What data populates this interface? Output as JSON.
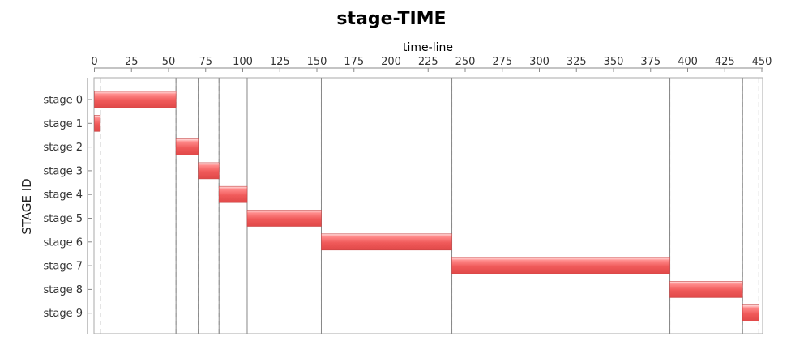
{
  "chart_data": {
    "type": "gantt",
    "title": "stage-TIME",
    "xlabel": "time-line",
    "ylabel": "STAGE ID",
    "xlim": [
      0,
      450
    ],
    "x_ticks": [
      0,
      25,
      50,
      75,
      100,
      125,
      150,
      175,
      200,
      225,
      250,
      275,
      300,
      325,
      350,
      375,
      400,
      425,
      450
    ],
    "categories": [
      "stage 0",
      "stage 1",
      "stage 2",
      "stage 3",
      "stage 4",
      "stage 5",
      "stage 6",
      "stage 7",
      "stage 8",
      "stage 9"
    ],
    "tasks": [
      {
        "stage": "stage 0",
        "start": 0,
        "end": 55
      },
      {
        "stage": "stage 1",
        "start": 0,
        "end": 4
      },
      {
        "stage": "stage 2",
        "start": 55,
        "end": 70
      },
      {
        "stage": "stage 3",
        "start": 70,
        "end": 84
      },
      {
        "stage": "stage 4",
        "start": 84,
        "end": 103
      },
      {
        "stage": "stage 5",
        "start": 103,
        "end": 153
      },
      {
        "stage": "stage 6",
        "start": 153,
        "end": 241
      },
      {
        "stage": "stage 7",
        "start": 241,
        "end": 388
      },
      {
        "stage": "stage 8",
        "start": 388,
        "end": 437
      },
      {
        "stage": "stage 9",
        "start": 437,
        "end": 448
      }
    ],
    "bar_color": "#f05a5a",
    "grid": false
  }
}
